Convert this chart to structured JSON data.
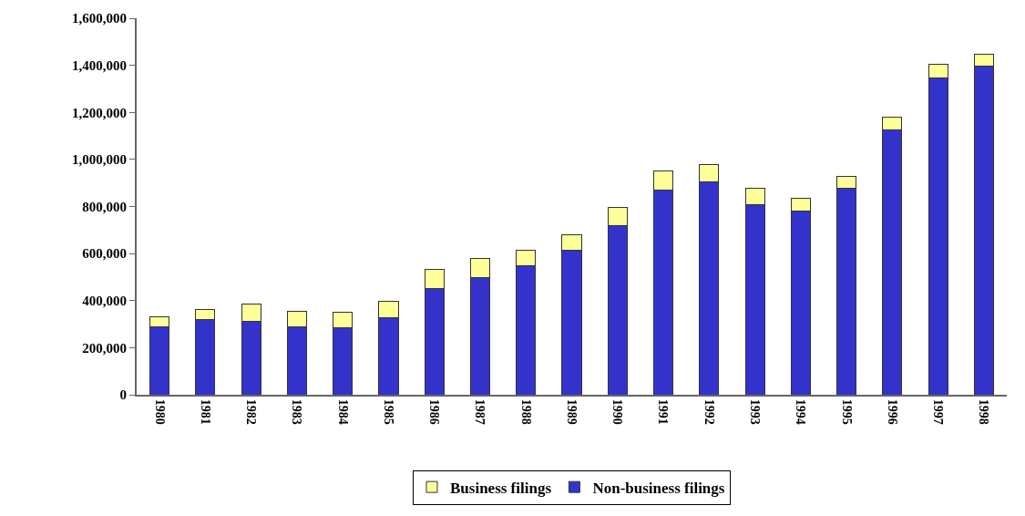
{
  "chart_data": {
    "type": "bar",
    "stacked": true,
    "legend": "bottom",
    "grid": false,
    "categories": [
      "1980",
      "1981",
      "1982",
      "1983",
      "1984",
      "1985",
      "1986",
      "1987",
      "1988",
      "1989",
      "1990",
      "1991",
      "1992",
      "1993",
      "1994",
      "1995",
      "1996",
      "1997",
      "1998"
    ],
    "ylim": [
      0,
      1600000
    ],
    "yticks": [
      {
        "value": 0,
        "label": "0"
      },
      {
        "value": 200000,
        "label": "200,000"
      },
      {
        "value": 400000,
        "label": "400,000"
      },
      {
        "value": 600000,
        "label": "600,000"
      },
      {
        "value": 800000,
        "label": "800,000"
      },
      {
        "value": 1000000,
        "label": "1,000,000"
      },
      {
        "value": 1200000,
        "label": "1,200,000"
      },
      {
        "value": 1400000,
        "label": "1,400,000"
      },
      {
        "value": 1600000,
        "label": "1,600,000"
      }
    ],
    "series": [
      {
        "name": "Non-business filings",
        "color": "#3333cc",
        "values": [
          290000,
          320000,
          311000,
          290000,
          286000,
          326000,
          453000,
          496000,
          549000,
          615000,
          718000,
          870000,
          904000,
          807000,
          780000,
          876000,
          1124000,
          1347000,
          1397000
        ]
      },
      {
        "name": "Business filings",
        "color": "#ffff99",
        "values": [
          43000,
          44000,
          73000,
          64000,
          63000,
          73000,
          80000,
          85000,
          66000,
          66000,
          77000,
          80000,
          73000,
          71000,
          55000,
          52000,
          56000,
          58000,
          49000
        ]
      }
    ]
  }
}
